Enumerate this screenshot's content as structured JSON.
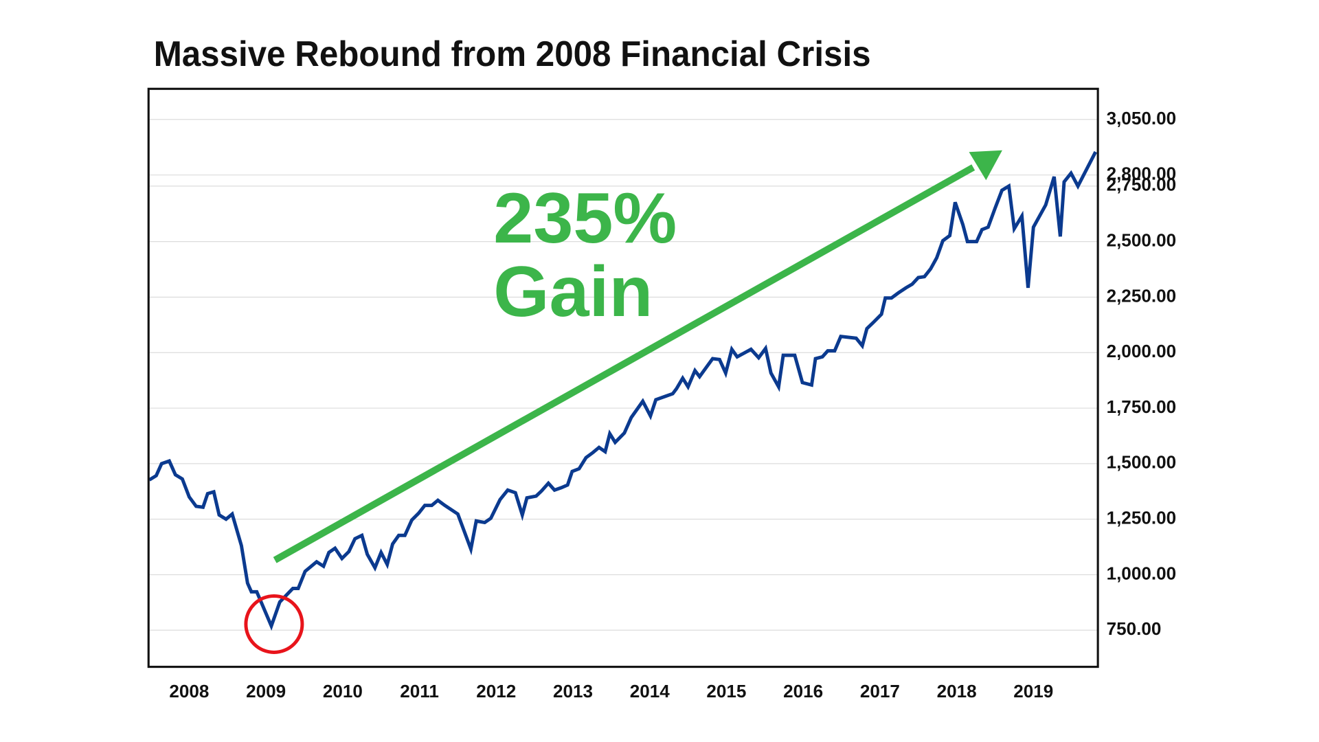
{
  "chart_data": {
    "type": "line",
    "title": "Massive Rebound from 2008 Financial Crisis",
    "annotations": [
      "235%",
      "Gain"
    ],
    "color": "#0b3a8f",
    "annotation_color": "#3cb54a",
    "marker_color": "#e8141b",
    "grid": true,
    "xlim": [
      2007.47,
      2019.84
    ],
    "xticks": [
      2008,
      2009,
      2010,
      2011,
      2012,
      2013,
      2014,
      2015,
      2016,
      2017,
      2018,
      2019
    ],
    "ylim": [
      585,
      3188
    ],
    "yticks": [
      {
        "value": 750,
        "label": "750.00"
      },
      {
        "value": 1000,
        "label": "1,000.00"
      },
      {
        "value": 1250,
        "label": "1,250.00"
      },
      {
        "value": 1500,
        "label": "1,500.00"
      },
      {
        "value": 1750,
        "label": "1,750.00"
      },
      {
        "value": 2000,
        "label": "2,000.00"
      },
      {
        "value": 2250,
        "label": "2,250.00"
      },
      {
        "value": 2500,
        "label": "2,500.00"
      },
      {
        "value": 2750,
        "label": "2,750.00"
      },
      {
        "value": 2800,
        "label": "2,800.00"
      },
      {
        "value": 3050,
        "label": "3,050.00"
      }
    ],
    "x": [
      2007.48,
      2007.57,
      2007.64,
      2007.74,
      2007.82,
      2007.91,
      2008.0,
      2008.09,
      2008.18,
      2008.24,
      2008.32,
      2008.39,
      2008.48,
      2008.56,
      2008.68,
      2008.76,
      2008.81,
      2008.88,
      2009.07,
      2009.18,
      2009.35,
      2009.42,
      2009.51,
      2009.66,
      2009.75,
      2009.82,
      2009.9,
      2009.99,
      2010.08,
      2010.16,
      2010.25,
      2010.32,
      2010.42,
      2010.5,
      2010.58,
      2010.65,
      2010.73,
      2010.81,
      2010.9,
      2010.99,
      2011.07,
      2011.16,
      2011.24,
      2011.33,
      2011.5,
      2011.67,
      2011.74,
      2011.85,
      2011.93,
      2012.05,
      2012.15,
      2012.25,
      2012.34,
      2012.4,
      2012.52,
      2012.59,
      2012.68,
      2012.76,
      2012.85,
      2012.93,
      2012.99,
      2013.08,
      2013.17,
      2013.26,
      2013.34,
      2013.42,
      2013.48,
      2013.55,
      2013.67,
      2013.76,
      2013.91,
      2014.01,
      2014.08,
      2014.21,
      2014.3,
      2014.35,
      2014.43,
      2014.5,
      2014.59,
      2014.65,
      2014.74,
      2014.82,
      2014.91,
      2014.99,
      2015.07,
      2015.14,
      2015.32,
      2015.42,
      2015.51,
      2015.58,
      2015.68,
      2015.74,
      2015.89,
      2015.99,
      2016.11,
      2016.16,
      2016.25,
      2016.32,
      2016.41,
      2016.49,
      2016.69,
      2016.77,
      2016.83,
      2016.92,
      2017.02,
      2017.07,
      2017.15,
      2017.24,
      2017.34,
      2017.42,
      2017.5,
      2017.58,
      2017.66,
      2017.74,
      2017.82,
      2017.91,
      2017.98,
      2018.08,
      2018.14,
      2018.26,
      2018.33,
      2018.41,
      2018.5,
      2018.59,
      2018.68,
      2018.75,
      2018.85,
      2018.93,
      2019.0,
      2019.16,
      2019.27,
      2019.35,
      2019.4,
      2019.49,
      2019.58,
      2019.81
    ],
    "values": [
      1427,
      1446,
      1500,
      1512,
      1450,
      1431,
      1350,
      1308,
      1304,
      1365,
      1373,
      1269,
      1250,
      1273,
      1131,
      962,
      923,
      923,
      769,
      877,
      938,
      938,
      1015,
      1058,
      1038,
      1100,
      1119,
      1073,
      1104,
      1162,
      1177,
      1092,
      1031,
      1100,
      1046,
      1138,
      1177,
      1177,
      1246,
      1277,
      1312,
      1312,
      1335,
      1312,
      1273,
      1115,
      1242,
      1235,
      1254,
      1338,
      1381,
      1369,
      1269,
      1346,
      1354,
      1377,
      1412,
      1381,
      1392,
      1404,
      1465,
      1477,
      1527,
      1550,
      1573,
      1554,
      1635,
      1596,
      1638,
      1708,
      1781,
      1715,
      1788,
      1804,
      1815,
      1838,
      1885,
      1846,
      1919,
      1892,
      1935,
      1973,
      1969,
      1908,
      2015,
      1981,
      2015,
      1977,
      2019,
      1908,
      1846,
      1988,
      1988,
      1865,
      1854,
      1973,
      1981,
      2008,
      2008,
      2073,
      2065,
      2031,
      2108,
      2138,
      2173,
      2246,
      2246,
      2269,
      2292,
      2308,
      2338,
      2342,
      2377,
      2427,
      2504,
      2527,
      2677,
      2577,
      2500,
      2500,
      2554,
      2565,
      2650,
      2731,
      2750,
      2558,
      2615,
      2292,
      2565,
      2665,
      2792,
      2523,
      2769,
      2808,
      2750,
      2904
    ]
  }
}
